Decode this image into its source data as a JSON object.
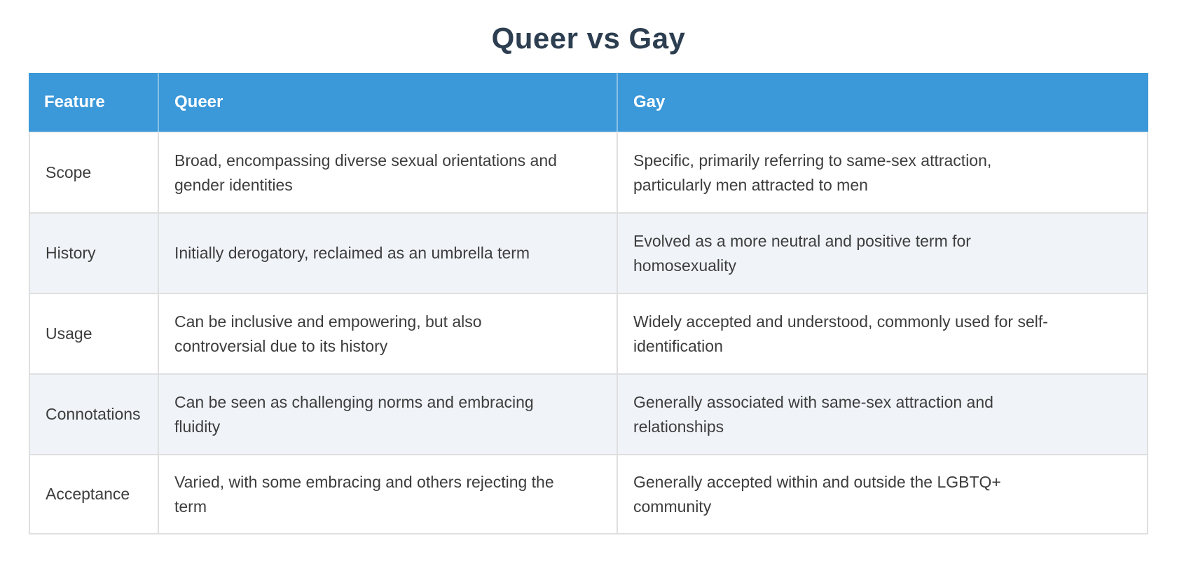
{
  "page": {
    "title": "Queer vs Gay"
  },
  "colors": {
    "header_bg": "#3b98d9",
    "header_text": "#ffffff",
    "row_alt_bg": "#f0f3f8",
    "grid_border": "#dfdfdf",
    "title_text": "#2c3e50",
    "body_text": "#3d3d3d"
  },
  "table": {
    "columns": [
      "Feature",
      "Queer",
      "Gay"
    ],
    "rows": [
      {
        "feature": "Scope",
        "queer": "Broad, encompassing diverse sexual orientations and\ngender identities",
        "gay": "Specific, primarily referring to same-sex attraction,\nparticularly men attracted to men"
      },
      {
        "feature": "History",
        "queer": "Initially derogatory, reclaimed as an umbrella term",
        "gay": "Evolved as a more neutral and positive term for\nhomosexuality"
      },
      {
        "feature": "Usage",
        "queer": "Can be inclusive and empowering, but also\ncontroversial due to its history",
        "gay": "Widely accepted and understood, commonly used for self-\nidentification"
      },
      {
        "feature": "Connotations",
        "queer": "Can be seen as challenging norms and embracing\nfluidity",
        "gay": "Generally associated with same-sex attraction and\nrelationships"
      },
      {
        "feature": "Acceptance",
        "queer": "Varied, with some embracing and others rejecting the\nterm",
        "gay": "Generally accepted within and outside the LGBTQ+\ncommunity"
      }
    ]
  }
}
